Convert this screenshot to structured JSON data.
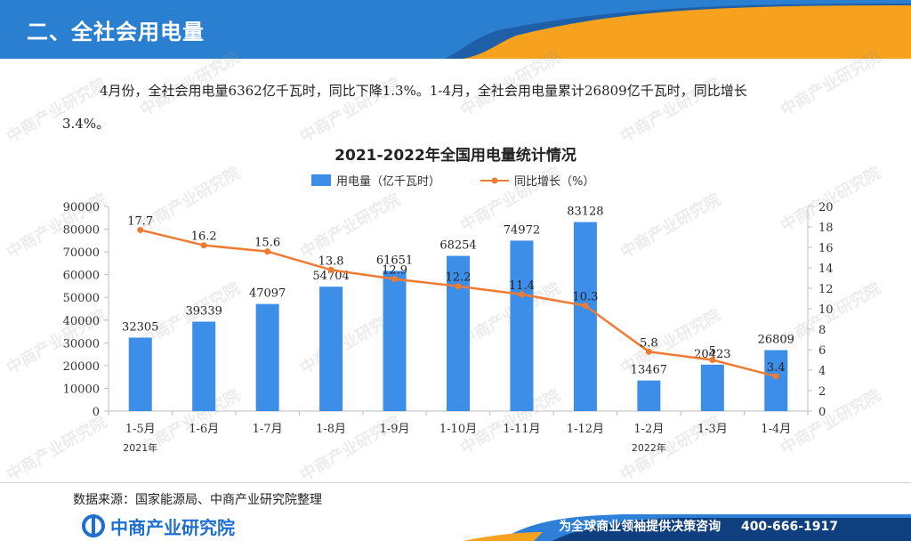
{
  "header": {
    "title": "二、全社会用电量"
  },
  "paragraph": {
    "line1": "4月份，全社会用电量6362亿千瓦时，同比下降1.3%。1-4月，全社会用电量累计26809亿千瓦时，同比增长",
    "line2": "3.4%。"
  },
  "watermark": "中商产业研究院",
  "chart_data": {
    "type": "bar",
    "title": "2021-2022年全国用电量统计情况",
    "categories": [
      "1-5月",
      "1-6月",
      "1-7月",
      "1-8月",
      "1-9月",
      "1-10月",
      "1-11月",
      "1-12月",
      "1-2月",
      "1-3月",
      "1-4月"
    ],
    "series": [
      {
        "name": "用电量（亿千瓦时）",
        "type": "bar",
        "axis": "left",
        "color": "#3d8ee8",
        "values": [
          32305,
          39339,
          47097,
          54704,
          61651,
          68254,
          74972,
          83128,
          13467,
          20423,
          26809
        ]
      },
      {
        "name": "同比增长（%）",
        "type": "line",
        "axis": "right",
        "color": "#ef7b33",
        "values": [
          17.7,
          16.2,
          15.6,
          13.8,
          12.9,
          12.2,
          11.4,
          10.3,
          5.8,
          5.0,
          3.4
        ]
      }
    ],
    "ylim_left": [
      0,
      90000
    ],
    "yticks_left": [
      0,
      10000,
      20000,
      30000,
      40000,
      50000,
      60000,
      70000,
      80000,
      90000
    ],
    "ylim_right": [
      0,
      20
    ],
    "yticks_right": [
      0,
      2,
      4,
      6,
      8,
      10,
      12,
      14,
      16,
      18,
      20
    ],
    "year_labels": [
      {
        "category_index": 0,
        "label": "2021年"
      },
      {
        "category_index": 8,
        "label": "2022年"
      }
    ],
    "legend_position": "top-center",
    "grid": false
  },
  "footer": {
    "source": "数据来源：国家能源局、中商产业研究院整理",
    "logo_text": "中商产业研究院",
    "slogan": "为全球商业领袖提供决策咨询",
    "phone": "400-666-1917",
    "colors": {
      "bar_dark": "#0f3f7e",
      "bar_light": "#2d7fd8",
      "accent": "#f6a21e"
    }
  }
}
